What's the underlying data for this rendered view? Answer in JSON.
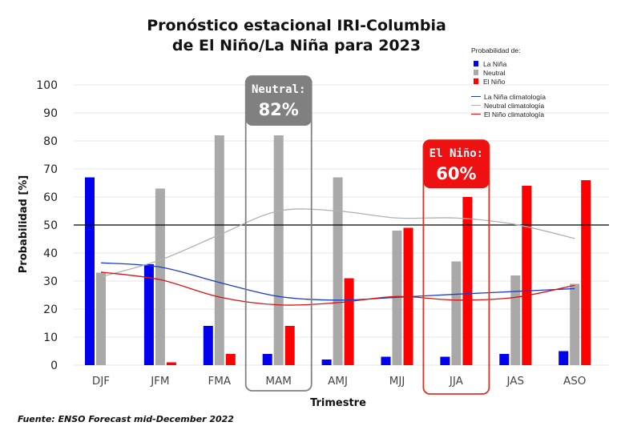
{
  "title_line1": "Pronóstico estacional IRI-Columbia",
  "title_line2": "de El Niño/La Niña para 2023",
  "source": "Fuente: ENSO Forecast mid-December 2022",
  "legend": {
    "title": "Probabilidad de:",
    "la_nina": "La Niña",
    "neutral": "Neutral",
    "el_nino": "El Niño",
    "la_nina_clim": "La Niña climatología",
    "neutral_clim": "Neutral climatología",
    "el_nino_clim": "El Niño climatología"
  },
  "colors": {
    "la_nina": "#0000ee",
    "neutral": "#a9a9a9",
    "el_nino": "#ff0000",
    "la_nina_clim": "#1a3ccc",
    "neutral_clim": "#b0b0b0",
    "el_nino_clim": "#dd1111",
    "neutral_callout": "#808080",
    "el_nino_callout": "#ee1111"
  },
  "callouts": [
    {
      "name": "Neutral:",
      "value": "82%",
      "category": "MAM",
      "color": "#808080",
      "box": "#808080"
    },
    {
      "name": "El Niño:",
      "value": "60%",
      "category": "JJA",
      "color": "#ee1111",
      "box": "#dd3322"
    }
  ],
  "chart_data": {
    "type": "bar",
    "title": "Pronóstico estacional IRI-Columbia de El Niño/La Niña para 2023",
    "xlabel": "Trimestre",
    "ylabel": "Probabilidad [%]",
    "ylim": [
      0,
      100
    ],
    "yticks": [
      0,
      10,
      20,
      30,
      40,
      50,
      60,
      70,
      80,
      90,
      100
    ],
    "reference_line": 50,
    "grid": true,
    "legend_position": "top-right",
    "categories": [
      "DJF",
      "JFM",
      "FMA",
      "MAM",
      "AMJ",
      "MJJ",
      "JJA",
      "JAS",
      "ASO"
    ],
    "series": [
      {
        "name": "La Niña",
        "values": [
          67,
          36,
          14,
          4,
          2,
          3,
          3,
          4,
          5
        ]
      },
      {
        "name": "Neutral",
        "values": [
          33,
          63,
          82,
          82,
          67,
          48,
          37,
          32,
          29
        ]
      },
      {
        "name": "El Niño",
        "values": [
          0,
          1,
          4,
          14,
          31,
          49,
          60,
          64,
          66
        ]
      }
    ],
    "lines": [
      {
        "name": "La Niña climatología",
        "values": [
          36.5,
          35,
          29.5,
          24.5,
          23.2,
          24.2,
          25.3,
          26.3,
          27.3
        ]
      },
      {
        "name": "Neutral climatología",
        "values": [
          31.5,
          37.5,
          46.5,
          55,
          55,
          52.5,
          52.5,
          50.2,
          45.2
        ]
      },
      {
        "name": "El Niño climatología",
        "values": [
          33.2,
          30.5,
          24.3,
          21.5,
          22.3,
          24.5,
          23.2,
          24.2,
          28.5
        ]
      }
    ]
  }
}
